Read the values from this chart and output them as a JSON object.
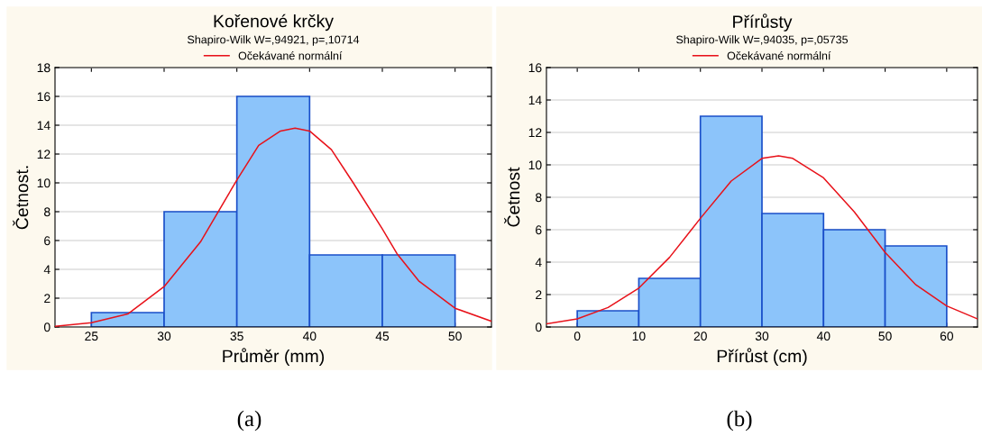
{
  "chart_data": [
    {
      "type": "histogram",
      "title": "Kořenové krčky",
      "subtitle": "Shapiro-Wilk W=,94921, p=,10714",
      "xlabel": "Průměr (mm)",
      "ylabel": "Četnost.",
      "xlim": [
        22.5,
        52.5
      ],
      "xticks": [
        25,
        30,
        35,
        40,
        45,
        50
      ],
      "ylim": [
        0,
        18
      ],
      "yticks": [
        0,
        2,
        4,
        6,
        8,
        10,
        12,
        14,
        16,
        18
      ],
      "grid": "y",
      "legend": "top",
      "series": [
        {
          "color": "#8cc4fa",
          "bins": [
            25,
            30,
            35,
            40,
            45,
            50
          ],
          "values": [
            1,
            8,
            16,
            5,
            5
          ]
        },
        {
          "type": "line",
          "name": "Očekávané normální",
          "color": "#e8121a",
          "x": [
            22.5,
            25,
            27.5,
            30,
            32.5,
            35,
            36.5,
            38,
            39,
            40,
            41.5,
            43,
            45,
            46,
            47.5,
            50,
            52.5
          ],
          "values": [
            0.05,
            0.3,
            0.9,
            2.8,
            5.9,
            10.2,
            12.6,
            13.6,
            13.8,
            13.6,
            12.3,
            10,
            6.8,
            5.1,
            3.2,
            1.3,
            0.4
          ]
        }
      ],
      "annotations": [
        "(a)"
      ]
    },
    {
      "type": "histogram",
      "title": "Přírůsty",
      "subtitle": "Shapiro-Wilk W=,94035, p=,05735",
      "xlabel": "Přírůst (cm)",
      "ylabel": "Četnost",
      "xlim": [
        -5,
        65
      ],
      "xticks": [
        0,
        10,
        20,
        30,
        40,
        50,
        60
      ],
      "ylim": [
        0,
        16
      ],
      "yticks": [
        0,
        2,
        4,
        6,
        8,
        10,
        12,
        14,
        16
      ],
      "grid": "y",
      "legend": "top",
      "series": [
        {
          "color": "#8cc4fa",
          "bins": [
            0,
            10,
            20,
            30,
            40,
            50,
            60
          ],
          "values": [
            1,
            3,
            13,
            7,
            6,
            5
          ]
        },
        {
          "type": "line",
          "name": "Očekávané normální",
          "color": "#e8121a",
          "x": [
            -5,
            0,
            5,
            10,
            15,
            20,
            25,
            30,
            32.7,
            35,
            40,
            45,
            50,
            55,
            60,
            65
          ],
          "values": [
            0.2,
            0.5,
            1.2,
            2.4,
            4.3,
            6.7,
            9.0,
            10.4,
            10.55,
            10.4,
            9.2,
            7.1,
            4.6,
            2.6,
            1.3,
            0.5
          ]
        }
      ],
      "annotations": [
        "(b)"
      ]
    }
  ]
}
